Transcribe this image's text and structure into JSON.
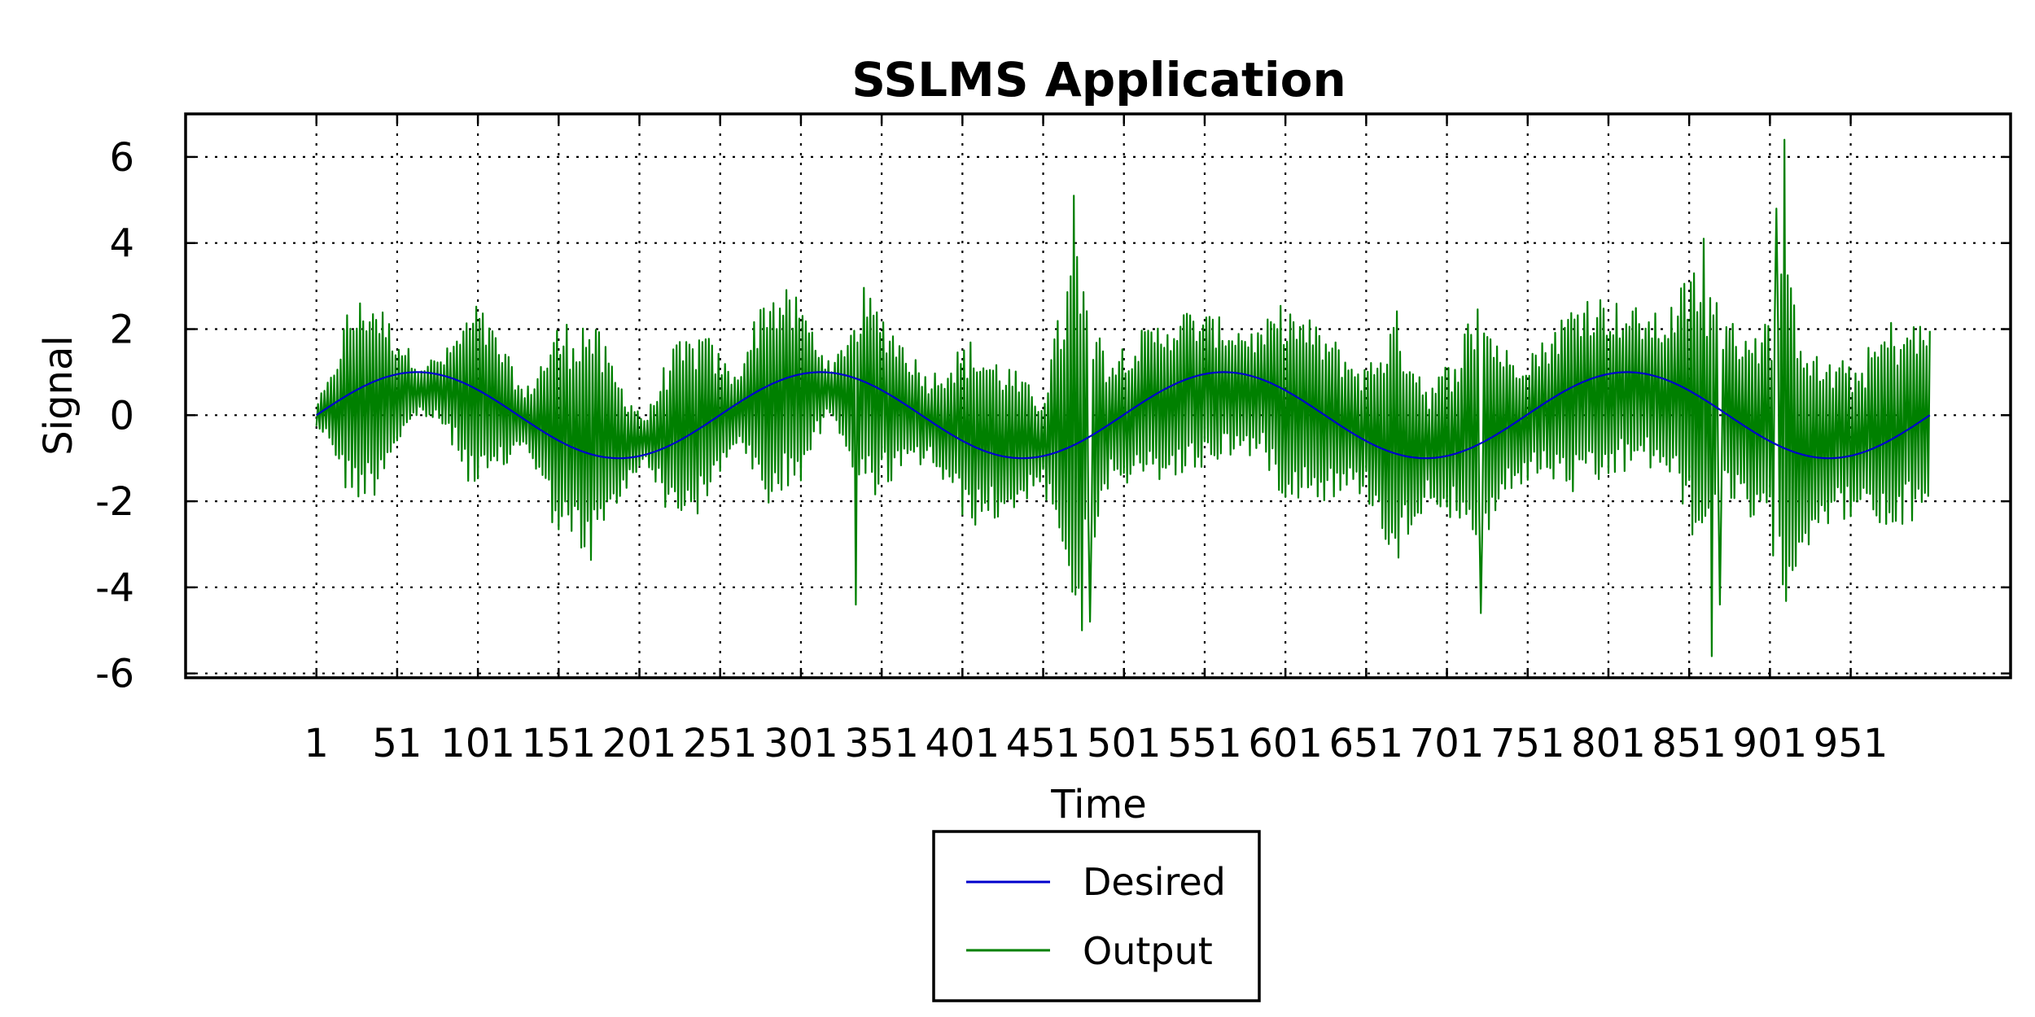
{
  "chart_data": {
    "type": "line",
    "title": "SSLMS Application",
    "xlabel": "Time",
    "ylabel": "Signal",
    "xlim": [
      -80,
      1050
    ],
    "ylim": [
      -6.1,
      7
    ],
    "x_ticks": [
      1,
      51,
      101,
      151,
      201,
      251,
      301,
      351,
      401,
      451,
      501,
      551,
      601,
      651,
      701,
      751,
      801,
      851,
      901,
      951
    ],
    "x_tick_labels": [
      "1",
      "51",
      "101",
      "151",
      "201",
      "251",
      "301",
      "351",
      "401",
      "451",
      "501",
      "551",
      "601",
      "651",
      "701",
      "751",
      "801",
      "851",
      "901",
      "951"
    ],
    "y_ticks": [
      -6,
      -4,
      -2,
      0,
      2,
      4,
      6
    ],
    "y_tick_labels": [
      "-6",
      "-4",
      "-2",
      "0",
      "2",
      "4",
      "6"
    ],
    "grid": true,
    "legend_position": "bottom-center",
    "x_range": [
      1,
      1000
    ],
    "series": [
      {
        "name": "Desired",
        "color": "#0000cc",
        "description": "sinusoid amplitude 1, period ~250 samples",
        "points": [
          [
            1,
            0
          ],
          [
            32,
            0.71
          ],
          [
            63,
            1
          ],
          [
            94,
            0.71
          ],
          [
            126,
            0
          ],
          [
            157,
            -0.71
          ],
          [
            188,
            -1
          ],
          [
            219,
            -0.71
          ],
          [
            251,
            0
          ],
          [
            282,
            0.71
          ],
          [
            313,
            1
          ],
          [
            344,
            0.71
          ],
          [
            376,
            0
          ],
          [
            407,
            -0.71
          ],
          [
            438,
            -1
          ],
          [
            469,
            -0.71
          ],
          [
            501,
            0
          ],
          [
            532,
            0.71
          ],
          [
            563,
            1
          ],
          [
            594,
            0.71
          ],
          [
            626,
            0
          ],
          [
            657,
            -0.71
          ],
          [
            688,
            -1
          ],
          [
            719,
            -0.71
          ],
          [
            751,
            0
          ],
          [
            782,
            0.71
          ],
          [
            813,
            1
          ],
          [
            844,
            0.71
          ],
          [
            876,
            0
          ],
          [
            907,
            -0.71
          ],
          [
            938,
            -1
          ],
          [
            969,
            -0.71
          ],
          [
            1000,
            0
          ]
        ]
      },
      {
        "name": "Output",
        "color": "#008000",
        "description": "high-frequency oscillation riding on desired, with varying envelope",
        "envelope": [
          [
            1,
            0.3
          ],
          [
            10,
            0.8
          ],
          [
            20,
            2.2
          ],
          [
            35,
            2.5
          ],
          [
            50,
            1.4
          ],
          [
            65,
            0.6
          ],
          [
            80,
            0.9
          ],
          [
            100,
            2.3
          ],
          [
            115,
            1.6
          ],
          [
            130,
            0.6
          ],
          [
            150,
            2.5
          ],
          [
            170,
            3.0
          ],
          [
            190,
            1.4
          ],
          [
            205,
            0.5
          ],
          [
            220,
            2.0
          ],
          [
            240,
            2.2
          ],
          [
            260,
            0.8
          ],
          [
            280,
            2.7
          ],
          [
            300,
            2.2
          ],
          [
            320,
            0.5
          ],
          [
            340,
            2.5
          ],
          [
            360,
            1.8
          ],
          [
            380,
            1.0
          ],
          [
            405,
            2.2
          ],
          [
            430,
            1.8
          ],
          [
            450,
            1.0
          ],
          [
            470,
            4.5
          ],
          [
            490,
            1.6
          ],
          [
            510,
            1.8
          ],
          [
            540,
            2.0
          ],
          [
            565,
            1.6
          ],
          [
            585,
            1.5
          ],
          [
            600,
            2.3
          ],
          [
            625,
            2.0
          ],
          [
            650,
            1.5
          ],
          [
            670,
            3.0
          ],
          [
            690,
            1.3
          ],
          [
            705,
            2.0
          ],
          [
            720,
            3.3
          ],
          [
            740,
            1.6
          ],
          [
            760,
            1.6
          ],
          [
            785,
            2.5
          ],
          [
            810,
            2.0
          ],
          [
            835,
            1.8
          ],
          [
            855,
            3.3
          ],
          [
            875,
            2.2
          ],
          [
            900,
            2.6
          ],
          [
            910,
            4.0
          ],
          [
            930,
            2.0
          ],
          [
            955,
            1.8
          ],
          [
            975,
            2.6
          ],
          [
            1000,
            2.2
          ]
        ],
        "spikes": [
          [
            335,
            -4.4
          ],
          [
            470,
            5.1
          ],
          [
            475,
            -5.0
          ],
          [
            480,
            -4.8
          ],
          [
            722,
            -4.6
          ],
          [
            860,
            4.1
          ],
          [
            865,
            -5.6
          ],
          [
            870,
            -4.4
          ],
          [
            905,
            4.8
          ],
          [
            910,
            6.4
          ]
        ]
      }
    ]
  },
  "legend": {
    "items": [
      {
        "label": "Desired",
        "color": "#0000cc"
      },
      {
        "label": "Output",
        "color": "#008000"
      }
    ]
  }
}
